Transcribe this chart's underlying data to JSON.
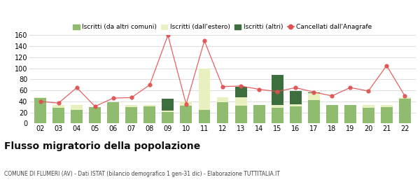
{
  "years": [
    "02",
    "03",
    "04",
    "05",
    "06",
    "07",
    "08",
    "09",
    "10",
    "11",
    "12",
    "13",
    "14",
    "15",
    "16",
    "17",
    "18",
    "19",
    "20",
    "21",
    "22"
  ],
  "iscritti_comuni": [
    46,
    29,
    25,
    30,
    39,
    30,
    31,
    21,
    32,
    25,
    38,
    32,
    34,
    28,
    31,
    43,
    33,
    34,
    29,
    30,
    45
  ],
  "iscritti_estero": [
    2,
    4,
    8,
    0,
    0,
    4,
    2,
    2,
    8,
    75,
    10,
    15,
    0,
    5,
    4,
    12,
    0,
    0,
    4,
    3,
    3
  ],
  "iscritti_altri": [
    0,
    0,
    0,
    0,
    0,
    0,
    0,
    22,
    0,
    0,
    0,
    20,
    0,
    55,
    24,
    2,
    0,
    0,
    0,
    0,
    0
  ],
  "cancellati": [
    40,
    37,
    65,
    31,
    46,
    47,
    70,
    160,
    35,
    150,
    67,
    68,
    62,
    58,
    65,
    57,
    50,
    65,
    59,
    105,
    50
  ],
  "color_comuni": "#8fbc6e",
  "color_estero": "#e8f0c0",
  "color_altri": "#3d6e3d",
  "color_cancellati": "#e05050",
  "title": "Flusso migratorio della popolazione",
  "subtitle": "COMUNE DI FLUMERI (AV) - Dati ISTAT (bilancio demografico 1 gen-31 dic) - Elaborazione TUTTITALIA.IT",
  "legend_labels": [
    "Iscritti (da altri comuni)",
    "Iscritti (dall'estero)",
    "Iscritti (altri)",
    "Cancellati dall'Anagrafe"
  ],
  "ylim": [
    0,
    160
  ],
  "yticks": [
    0,
    20,
    40,
    60,
    80,
    100,
    120,
    140,
    160
  ]
}
